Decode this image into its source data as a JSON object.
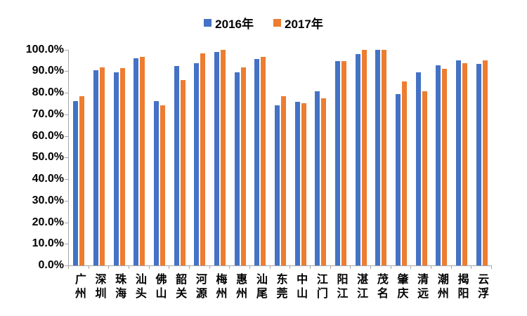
{
  "legend": {
    "items": [
      {
        "label": "2016年",
        "color": "#4472C4"
      },
      {
        "label": "2017年",
        "color": "#ED7D31"
      }
    ],
    "position": "top-center"
  },
  "chart_data": {
    "type": "bar",
    "title": "",
    "xlabel": "",
    "ylabel": "",
    "categories": [
      "广州",
      "深圳",
      "珠海",
      "汕头",
      "佛山",
      "韶关",
      "河源",
      "梅州",
      "惠州",
      "汕尾",
      "东莞",
      "中山",
      "江门",
      "阳江",
      "湛江",
      "茂名",
      "肇庆",
      "清远",
      "潮州",
      "揭阳",
      "云浮"
    ],
    "series": [
      {
        "name": "2016年",
        "color": "#4472C4",
        "values": [
          76.0,
          90.4,
          89.4,
          95.9,
          76.1,
          92.5,
          93.6,
          99.0,
          89.4,
          95.7,
          74.3,
          75.9,
          80.8,
          94.6,
          97.8,
          100.0,
          79.5,
          89.4,
          92.6,
          94.8,
          93.4
        ]
      },
      {
        "name": "2017年",
        "color": "#ED7D31",
        "values": [
          78.5,
          91.6,
          91.3,
          96.7,
          74.0,
          86.0,
          98.2,
          100.0,
          91.6,
          96.6,
          78.3,
          75.0,
          77.5,
          94.6,
          100.0,
          100.0,
          85.1,
          80.8,
          91.2,
          93.5,
          94.8
        ]
      }
    ],
    "ylim": [
      0,
      100
    ],
    "ytick_step": 10,
    "ytick_labels": [
      "0.0%",
      "10.0%",
      "20.0%",
      "30.0%",
      "40.0%",
      "50.0%",
      "60.0%",
      "70.0%",
      "80.0%",
      "90.0%",
      "100.0%"
    ],
    "grid": false,
    "legend_position": "top-center",
    "axis_color": "#a6a6a6",
    "text_color": "#000000"
  }
}
